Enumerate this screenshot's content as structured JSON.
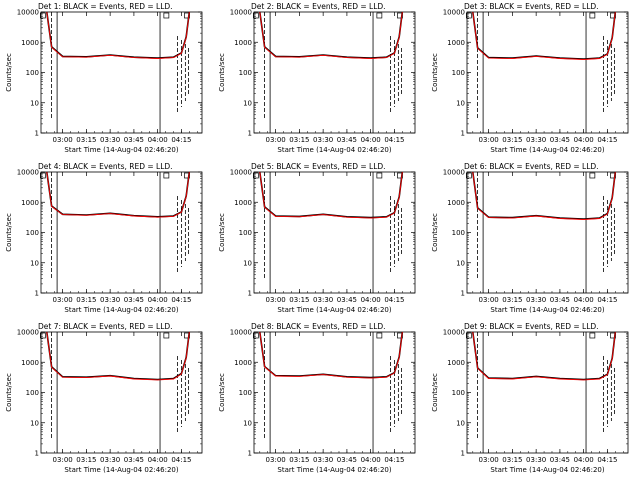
{
  "figure": {
    "xlabel": "Start Time (14-Aug-04 02:46:20)",
    "ylabel": "Counts/sec",
    "x_tick_labels": [
      "03:00",
      "03:15",
      "03:30",
      "03:45",
      "04:00",
      "04:15"
    ],
    "y_tick_labels": [
      "1",
      "10",
      "100",
      "1000",
      "10000"
    ],
    "colors": {
      "events": "#000000",
      "lld": "#ff0000"
    }
  },
  "chart_data": [
    {
      "type": "line",
      "title": "Det 1: BLACK = Events, RED = LLD.",
      "xlabel": "Start Time (14-Aug-04 02:46:20)",
      "ylabel": "Counts/sec",
      "xlim": [
        "02:46:20",
        "04:28"
      ],
      "ylim": [
        1,
        10000
      ],
      "yscale": "log",
      "x": [
        "02:50",
        "02:53",
        "03:00",
        "03:15",
        "03:30",
        "03:45",
        "04:00",
        "04:10",
        "04:15",
        "04:18",
        "04:20"
      ],
      "series": [
        {
          "name": "Events",
          "color": "#000000",
          "values": [
            10000,
            700,
            340,
            330,
            380,
            320,
            300,
            320,
            440,
            1500,
            10000
          ]
        },
        {
          "name": "LLD",
          "color": "#ff0000",
          "values": [
            10000,
            680,
            330,
            320,
            370,
            310,
            290,
            310,
            430,
            1450,
            10000
          ]
        }
      ]
    },
    {
      "type": "line",
      "title": "Det 2: BLACK = Events, RED = LLD.",
      "xlabel": "Start Time (14-Aug-04 02:46:20)",
      "ylabel": "Counts/sec",
      "xlim": [
        "02:46:20",
        "04:28"
      ],
      "ylim": [
        1,
        10000
      ],
      "yscale": "log",
      "x": [
        "02:50",
        "02:53",
        "03:00",
        "03:15",
        "03:30",
        "03:45",
        "04:00",
        "04:10",
        "04:15",
        "04:18",
        "04:20"
      ],
      "series": [
        {
          "name": "Events",
          "color": "#000000",
          "values": [
            10000,
            700,
            340,
            330,
            380,
            320,
            300,
            320,
            440,
            1500,
            10000
          ]
        },
        {
          "name": "LLD",
          "color": "#ff0000",
          "values": [
            10000,
            680,
            330,
            320,
            370,
            310,
            290,
            310,
            430,
            1450,
            10000
          ]
        }
      ]
    },
    {
      "type": "line",
      "title": "Det 3: BLACK = Events, RED = LLD.",
      "xlabel": "Start Time (14-Aug-04 02:46:20)",
      "ylabel": "Counts/sec",
      "xlim": [
        "02:46:20",
        "04:28"
      ],
      "ylim": [
        1,
        10000
      ],
      "yscale": "log",
      "x": [
        "02:50",
        "02:53",
        "03:00",
        "03:15",
        "03:30",
        "03:45",
        "04:00",
        "04:10",
        "04:15",
        "04:18",
        "04:20"
      ],
      "series": [
        {
          "name": "Events",
          "color": "#000000",
          "values": [
            10000,
            650,
            310,
            300,
            350,
            300,
            280,
            300,
            410,
            1400,
            10000
          ]
        },
        {
          "name": "LLD",
          "color": "#ff0000",
          "values": [
            10000,
            630,
            300,
            290,
            340,
            290,
            270,
            290,
            400,
            1350,
            10000
          ]
        }
      ]
    },
    {
      "type": "line",
      "title": "Det 4: BLACK = Events, RED = LLD.",
      "xlabel": "Start Time (14-Aug-04 02:46:20)",
      "ylabel": "Counts/sec",
      "xlim": [
        "02:46:20",
        "04:28"
      ],
      "ylim": [
        1,
        10000
      ],
      "yscale": "log",
      "x": [
        "02:50",
        "02:53",
        "03:00",
        "03:15",
        "03:30",
        "03:45",
        "04:00",
        "04:10",
        "04:15",
        "04:18",
        "04:20"
      ],
      "series": [
        {
          "name": "Events",
          "color": "#000000",
          "values": [
            10000,
            750,
            400,
            380,
            430,
            360,
            330,
            350,
            480,
            1600,
            10000
          ]
        },
        {
          "name": "LLD",
          "color": "#ff0000",
          "values": [
            10000,
            730,
            390,
            370,
            420,
            350,
            320,
            340,
            470,
            1550,
            10000
          ]
        }
      ]
    },
    {
      "type": "line",
      "title": "Det 5: BLACK = Events, RED = LLD.",
      "xlabel": "Start Time (14-Aug-04 02:46:20)",
      "ylabel": "Counts/sec",
      "xlim": [
        "02:46:20",
        "04:28"
      ],
      "ylim": [
        1,
        10000
      ],
      "yscale": "log",
      "x": [
        "02:50",
        "02:53",
        "03:00",
        "03:15",
        "03:30",
        "03:45",
        "04:00",
        "04:10",
        "04:15",
        "04:18",
        "04:20"
      ],
      "series": [
        {
          "name": "Events",
          "color": "#000000",
          "values": [
            10000,
            700,
            350,
            340,
            400,
            330,
            310,
            330,
            450,
            1500,
            10000
          ]
        },
        {
          "name": "LLD",
          "color": "#ff0000",
          "values": [
            10000,
            680,
            340,
            330,
            390,
            320,
            300,
            320,
            440,
            1450,
            10000
          ]
        }
      ]
    },
    {
      "type": "line",
      "title": "Det 6: BLACK = Events, RED = LLD.",
      "xlabel": "Start Time (14-Aug-04 02:46:20)",
      "ylabel": "Counts/sec",
      "xlim": [
        "02:46:20",
        "04:28"
      ],
      "ylim": [
        1,
        10000
      ],
      "yscale": "log",
      "x": [
        "02:50",
        "02:53",
        "03:00",
        "03:15",
        "03:30",
        "03:45",
        "04:00",
        "04:10",
        "04:15",
        "04:18",
        "04:20"
      ],
      "series": [
        {
          "name": "Events",
          "color": "#000000",
          "values": [
            10000,
            650,
            320,
            310,
            360,
            300,
            280,
            300,
            420,
            1400,
            10000
          ]
        },
        {
          "name": "LLD",
          "color": "#ff0000",
          "values": [
            10000,
            630,
            310,
            300,
            350,
            290,
            270,
            290,
            410,
            1350,
            10000
          ]
        }
      ]
    },
    {
      "type": "line",
      "title": "Det 7: BLACK = Events, RED = LLD.",
      "xlabel": "Start Time (14-Aug-04 02:46:20)",
      "ylabel": "Counts/sec",
      "xlim": [
        "02:46:20",
        "04:28"
      ],
      "ylim": [
        1,
        10000
      ],
      "yscale": "log",
      "x": [
        "02:50",
        "02:53",
        "03:00",
        "03:15",
        "03:30",
        "03:45",
        "04:00",
        "04:10",
        "04:15",
        "04:18",
        "04:20"
      ],
      "series": [
        {
          "name": "Events",
          "color": "#000000",
          "values": [
            10000,
            700,
            330,
            320,
            360,
            290,
            270,
            290,
            420,
            1450,
            10000
          ]
        },
        {
          "name": "LLD",
          "color": "#ff0000",
          "values": [
            10000,
            680,
            320,
            310,
            350,
            280,
            260,
            280,
            410,
            1400,
            10000
          ]
        }
      ]
    },
    {
      "type": "line",
      "title": "Det 8: BLACK = Events, RED = LLD.",
      "xlabel": "Start Time (14-Aug-04 02:46:20)",
      "ylabel": "Counts/sec",
      "xlim": [
        "02:46:20",
        "04:28"
      ],
      "ylim": [
        1,
        10000
      ],
      "yscale": "log",
      "x": [
        "02:50",
        "02:53",
        "03:00",
        "03:15",
        "03:30",
        "03:45",
        "04:00",
        "04:10",
        "04:15",
        "04:18",
        "04:20"
      ],
      "series": [
        {
          "name": "Events",
          "color": "#000000",
          "values": [
            10000,
            720,
            360,
            350,
            400,
            330,
            310,
            330,
            450,
            1500,
            10000
          ]
        },
        {
          "name": "LLD",
          "color": "#ff0000",
          "values": [
            10000,
            700,
            350,
            340,
            390,
            320,
            300,
            320,
            440,
            1450,
            10000
          ]
        }
      ]
    },
    {
      "type": "line",
      "title": "Det 9: BLACK = Events, RED = LLD.",
      "xlabel": "Start Time (14-Aug-04 02:46:20)",
      "ylabel": "Counts/sec",
      "xlim": [
        "02:46:20",
        "04:28"
      ],
      "ylim": [
        1,
        10000
      ],
      "yscale": "log",
      "x": [
        "02:50",
        "02:53",
        "03:00",
        "03:15",
        "03:30",
        "03:45",
        "04:00",
        "04:10",
        "04:15",
        "04:18",
        "04:20"
      ],
      "series": [
        {
          "name": "Events",
          "color": "#000000",
          "values": [
            10000,
            650,
            300,
            290,
            340,
            290,
            270,
            290,
            400,
            1350,
            10000
          ]
        },
        {
          "name": "LLD",
          "color": "#ff0000",
          "values": [
            10000,
            630,
            290,
            280,
            330,
            280,
            260,
            280,
            390,
            1300,
            10000
          ]
        }
      ]
    }
  ]
}
